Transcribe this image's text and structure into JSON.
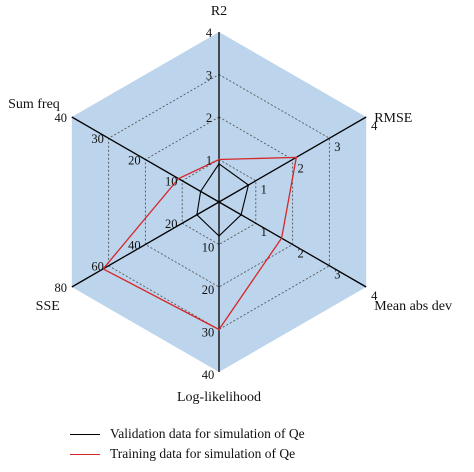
{
  "chart_data": {
    "type": "radar",
    "axes": [
      {
        "label": "R2",
        "ticks": [
          "1",
          "2",
          "3",
          "4"
        ],
        "max": 4
      },
      {
        "label": "RMSE",
        "ticks": [
          "1",
          "2",
          "3",
          "4"
        ],
        "max": 4
      },
      {
        "label": "Mean abs dev",
        "ticks": [
          "1",
          "2",
          "3",
          "4"
        ],
        "max": 4
      },
      {
        "label": "Log-likelihood",
        "ticks": [
          "10",
          "20",
          "30",
          "40"
        ],
        "max": 40
      },
      {
        "label": "SSE",
        "ticks": [
          "20",
          "40",
          "60",
          "80"
        ],
        "max": 80
      },
      {
        "label": "Sum freq",
        "ticks": [
          "10",
          "20",
          "30",
          "40"
        ],
        "max": 40
      }
    ],
    "series": [
      {
        "name": "Validation data for simulation of Qe",
        "color": "#000000",
        "values": [
          0.9,
          0.8,
          0.6,
          8,
          12,
          5
        ]
      },
      {
        "name": "Training data for simulation of Qe",
        "color": "#d62728",
        "values": [
          1.0,
          2.1,
          1.7,
          30,
          63,
          11
        ]
      }
    ],
    "fill_color": "#bcd4ec",
    "grid": true,
    "legend_position": "bottom"
  }
}
